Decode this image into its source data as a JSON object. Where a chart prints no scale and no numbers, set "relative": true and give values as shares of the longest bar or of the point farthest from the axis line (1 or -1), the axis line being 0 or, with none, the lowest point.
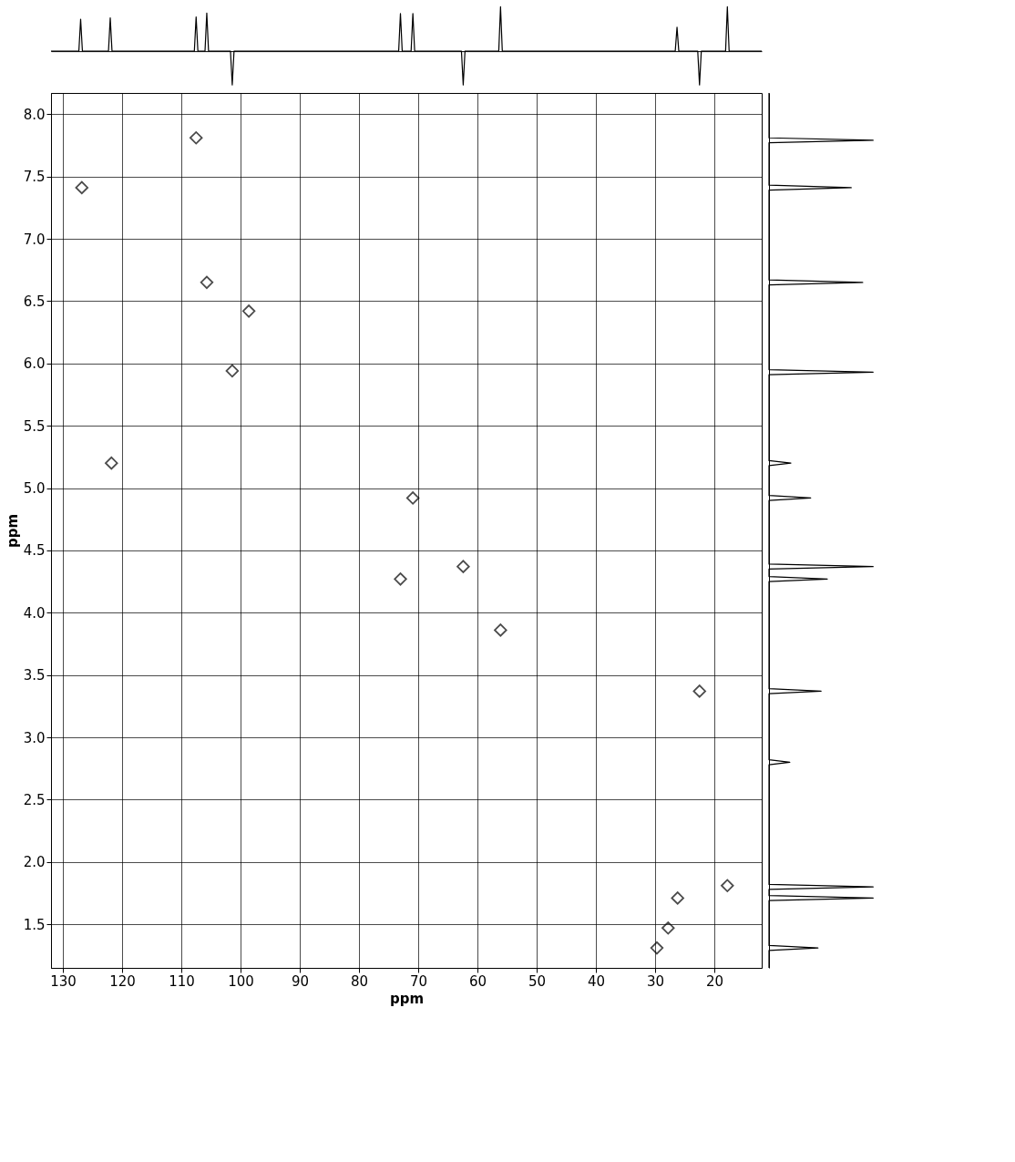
{
  "chart_data": [
    {
      "type": "line",
      "relative": true,
      "tick_labels": false,
      "xlim": [
        132,
        12
      ],
      "grid": false,
      "series": [
        {
          "color": "#000000",
          "x": [
            132,
            127.3,
            127.0,
            126.7,
            122.3,
            122.0,
            121.7,
            107.8,
            107.5,
            107.2,
            106.0,
            105.7,
            105.4,
            101.7,
            101.4,
            101.1,
            73.3,
            73.0,
            72.7,
            71.2,
            70.9,
            70.6,
            62.7,
            62.4,
            62.1,
            56.4,
            56.1,
            55.8,
            26.6,
            26.3,
            26.0,
            22.8,
            22.5,
            22.2,
            18.1,
            17.8,
            17.5,
            12
          ],
          "values": [
            0,
            0,
            0.72,
            0,
            0,
            0.75,
            0,
            0,
            0.77,
            0,
            0,
            0.86,
            0,
            0,
            -0.76,
            0,
            0,
            0.85,
            0,
            0,
            0.85,
            0,
            0,
            -0.76,
            0,
            0,
            1,
            0,
            0,
            0.54,
            0,
            0,
            -0.76,
            0,
            0,
            1,
            0,
            0
          ]
        }
      ]
    },
    {
      "type": "scatter",
      "xlabel": "ppm",
      "ylabel": "ppm",
      "xlim": [
        132,
        12
      ],
      "ylim": [
        1.15,
        8.17
      ],
      "xticks": [
        130,
        120,
        110,
        100,
        90,
        80,
        70,
        60,
        50,
        40,
        30,
        20
      ],
      "yticks": [
        {
          "value": 8,
          "label": "8.0"
        },
        7.5,
        {
          "value": 7,
          "label": "7.0"
        },
        6.5,
        {
          "value": 6,
          "label": "6.0"
        },
        5.5,
        {
          "value": 5,
          "label": "5.0"
        },
        4.5,
        {
          "value": 4,
          "label": "4.0"
        },
        3.5,
        {
          "value": 3,
          "label": "3.0"
        },
        2.5,
        {
          "value": 2,
          "label": "2.0"
        },
        1.5
      ],
      "grid": true,
      "marker": "diamond",
      "series": [
        {
          "color": "#000000",
          "x": [
            126.8,
            121.8,
            107.5,
            105.7,
            98.6,
            101.4,
            70.9,
            73.0,
            62.4,
            56.1,
            22.5,
            17.8,
            26.2,
            29.7,
            27.8
          ],
          "values": [
            7.41,
            5.2,
            7.81,
            6.65,
            6.42,
            5.94,
            4.92,
            4.27,
            4.37,
            3.86,
            3.37,
            1.81,
            1.71,
            1.31,
            1.47
          ]
        }
      ]
    },
    {
      "type": "line",
      "relative": true,
      "tick_labels": false,
      "orientation": "horizontal",
      "ylim": [
        1.15,
        8.17
      ],
      "grid": false,
      "series": [
        {
          "color": "#000000",
          "x": [
            8.17,
            7.81,
            7.79,
            7.77,
            7.43,
            7.41,
            7.39,
            6.67,
            6.65,
            6.63,
            5.95,
            5.93,
            5.91,
            5.22,
            5.2,
            5.18,
            4.94,
            4.92,
            4.9,
            4.39,
            4.37,
            4.35,
            4.29,
            4.27,
            4.25,
            3.39,
            3.37,
            3.35,
            2.82,
            2.8,
            2.78,
            1.82,
            1.8,
            1.78,
            1.73,
            1.71,
            1.69,
            1.33,
            1.31,
            1.29,
            1.15
          ],
          "values": [
            0,
            0,
            1,
            0,
            0,
            0.79,
            0,
            0,
            0.9,
            0,
            0,
            1,
            0,
            0,
            0.21,
            0,
            0,
            0.4,
            0,
            0,
            1,
            0,
            0,
            0.56,
            0,
            0,
            0.5,
            0,
            0,
            0.2,
            0,
            0,
            1,
            0,
            0,
            1,
            0,
            0,
            0.47,
            0,
            0
          ]
        }
      ]
    }
  ]
}
